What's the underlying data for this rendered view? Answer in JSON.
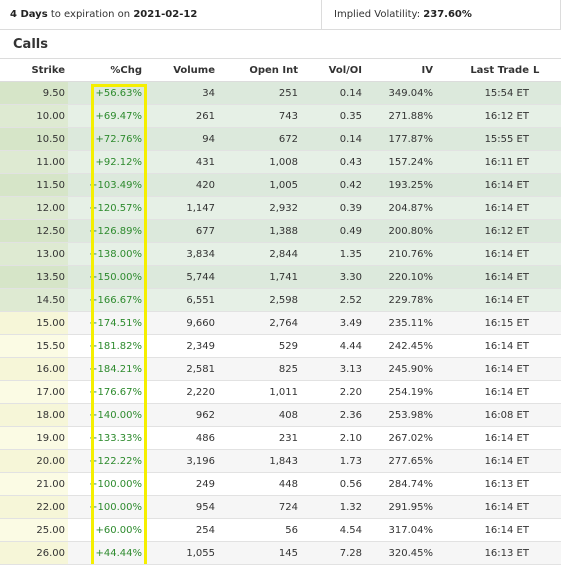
{
  "summary": {
    "days": "4 Days",
    "to_exp_text": "to expiration on",
    "date": "2021-02-12",
    "iv_label": "Implied Volatility:",
    "iv_value": "237.60%"
  },
  "section_title": "Calls",
  "columns": [
    "Strike",
    "%Chg",
    "Volume",
    "Open Int",
    "Vol/OI",
    "IV",
    "Last Trade",
    "L"
  ],
  "rows": [
    {
      "strike": "9.50",
      "chg": "+56.63%",
      "volume": "34",
      "open_int": "251",
      "vol_oi": "0.14",
      "iv": "349.04%",
      "last": "15:54 ET",
      "itm": true
    },
    {
      "strike": "10.00",
      "chg": "+69.47%",
      "volume": "261",
      "open_int": "743",
      "vol_oi": "0.35",
      "iv": "271.88%",
      "last": "16:12 ET",
      "itm": true
    },
    {
      "strike": "10.50",
      "chg": "+72.76%",
      "volume": "94",
      "open_int": "672",
      "vol_oi": "0.14",
      "iv": "177.87%",
      "last": "15:55 ET",
      "itm": true
    },
    {
      "strike": "11.00",
      "chg": "+92.12%",
      "volume": "431",
      "open_int": "1,008",
      "vol_oi": "0.43",
      "iv": "157.24%",
      "last": "16:11 ET",
      "itm": true
    },
    {
      "strike": "11.50",
      "chg": "+103.49%",
      "volume": "420",
      "open_int": "1,005",
      "vol_oi": "0.42",
      "iv": "193.25%",
      "last": "16:14 ET",
      "itm": true
    },
    {
      "strike": "12.00",
      "chg": "+120.57%",
      "volume": "1,147",
      "open_int": "2,932",
      "vol_oi": "0.39",
      "iv": "204.87%",
      "last": "16:14 ET",
      "itm": true
    },
    {
      "strike": "12.50",
      "chg": "+126.89%",
      "volume": "677",
      "open_int": "1,388",
      "vol_oi": "0.49",
      "iv": "200.80%",
      "last": "16:12 ET",
      "itm": true
    },
    {
      "strike": "13.00",
      "chg": "+138.00%",
      "volume": "3,834",
      "open_int": "2,844",
      "vol_oi": "1.35",
      "iv": "210.76%",
      "last": "16:14 ET",
      "itm": true
    },
    {
      "strike": "13.50",
      "chg": "+150.00%",
      "volume": "5,744",
      "open_int": "1,741",
      "vol_oi": "3.30",
      "iv": "220.10%",
      "last": "16:14 ET",
      "itm": true
    },
    {
      "strike": "14.50",
      "chg": "+166.67%",
      "volume": "6,551",
      "open_int": "2,598",
      "vol_oi": "2.52",
      "iv": "229.78%",
      "last": "16:14 ET",
      "itm": true
    },
    {
      "strike": "15.00",
      "chg": "+174.51%",
      "volume": "9,660",
      "open_int": "2,764",
      "vol_oi": "3.49",
      "iv": "235.11%",
      "last": "16:15 ET",
      "itm": false
    },
    {
      "strike": "15.50",
      "chg": "+181.82%",
      "volume": "2,349",
      "open_int": "529",
      "vol_oi": "4.44",
      "iv": "242.45%",
      "last": "16:14 ET",
      "itm": false
    },
    {
      "strike": "16.00",
      "chg": "+184.21%",
      "volume": "2,581",
      "open_int": "825",
      "vol_oi": "3.13",
      "iv": "245.90%",
      "last": "16:14 ET",
      "itm": false
    },
    {
      "strike": "17.00",
      "chg": "+176.67%",
      "volume": "2,220",
      "open_int": "1,011",
      "vol_oi": "2.20",
      "iv": "254.19%",
      "last": "16:14 ET",
      "itm": false
    },
    {
      "strike": "18.00",
      "chg": "+140.00%",
      "volume": "962",
      "open_int": "408",
      "vol_oi": "2.36",
      "iv": "253.98%",
      "last": "16:08 ET",
      "itm": false
    },
    {
      "strike": "19.00",
      "chg": "+133.33%",
      "volume": "486",
      "open_int": "231",
      "vol_oi": "2.10",
      "iv": "267.02%",
      "last": "16:14 ET",
      "itm": false
    },
    {
      "strike": "20.00",
      "chg": "+122.22%",
      "volume": "3,196",
      "open_int": "1,843",
      "vol_oi": "1.73",
      "iv": "277.65%",
      "last": "16:14 ET",
      "itm": false
    },
    {
      "strike": "21.00",
      "chg": "+100.00%",
      "volume": "249",
      "open_int": "448",
      "vol_oi": "0.56",
      "iv": "284.74%",
      "last": "16:13 ET",
      "itm": false
    },
    {
      "strike": "22.00",
      "chg": "+100.00%",
      "volume": "954",
      "open_int": "724",
      "vol_oi": "1.32",
      "iv": "291.95%",
      "last": "16:14 ET",
      "itm": false
    },
    {
      "strike": "25.00",
      "chg": "+60.00%",
      "volume": "254",
      "open_int": "56",
      "vol_oi": "4.54",
      "iv": "317.04%",
      "last": "16:14 ET",
      "itm": false
    },
    {
      "strike": "26.00",
      "chg": "+44.44%",
      "volume": "1,055",
      "open_int": "145",
      "vol_oi": "7.28",
      "iv": "320.45%",
      "last": "16:13 ET",
      "itm": false
    }
  ],
  "colors": {
    "itm_row": "#dce9dc",
    "otm_row": "#f6f6f6",
    "change_positive": "#2e8b2e",
    "highlight_box": "#f5ef00"
  }
}
